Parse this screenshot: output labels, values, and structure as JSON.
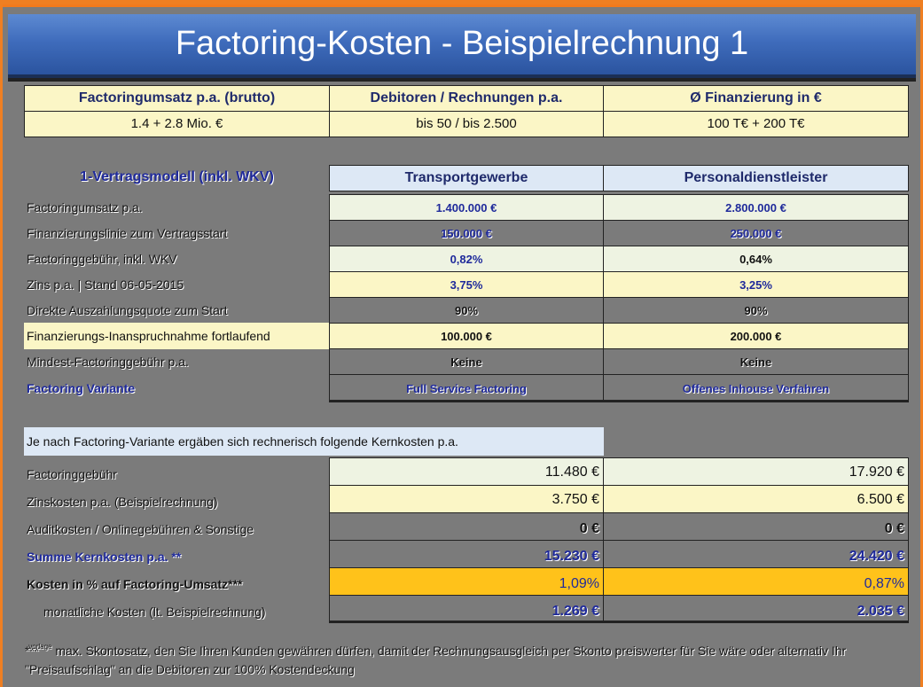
{
  "title": "Factoring-Kosten - Beispielrechnung 1",
  "top_table": {
    "headers": [
      "Factoringumsatz p.a. (brutto)",
      "Debitoren / Rechnungen p.a.",
      "Ø Finanzierung in €"
    ],
    "values": [
      "1.4 + 2.8 Mio. €",
      "bis 50 / bis 2.500",
      "100 T€ + 200 T€"
    ]
  },
  "model": {
    "header_label": "1-Vertragsmodell (inkl. WKV)",
    "col1": "Transportgewerbe",
    "col2": "Personaldienstleister",
    "rows": [
      {
        "label": "Factoringumsatz  p.a.",
        "v1": "1.400.000  €",
        "v2": "2.800.000  €"
      },
      {
        "label": "Finanzierungslinie  zum Vertragsstart",
        "v1": "150.000  €",
        "v2": "250.000  €"
      },
      {
        "label": "Factoringgebühr,  inkl.  WKV",
        "v1": "0,82%",
        "v2": "0,64%"
      },
      {
        "label": "Zins p.a.  | Stand 06-05-2015",
        "v1": "3,75%",
        "v2": "3,25%"
      },
      {
        "label": "Direkte  Auszahlungsquote  zum Start",
        "v1": "90%",
        "v2": "90%"
      },
      {
        "label": "Finanzierungs-Inanspruchnahme  fortlaufend",
        "v1": "100.000  €",
        "v2": "200.000  €"
      },
      {
        "label": "Mindest-Factoringgebühr  p.a.",
        "v1": "Keine",
        "v2": "Keine"
      },
      {
        "label": "Factoring  Variante",
        "v1": "Full  Service  Factoring",
        "v2": "Offenes  Inhouse  Verfahren"
      }
    ]
  },
  "core": {
    "intro": "Je nach Factoring-Variante  ergäben sich rechnerisch  folgende  Kernkosten  p.a.",
    "rows": [
      {
        "label": "Factoringgebühr",
        "v1": "11.480 €",
        "v2": "17.920 €"
      },
      {
        "label": "Zinskosten  p.a.  (Beispielrechnung)",
        "v1": "3.750 €",
        "v2": "6.500 €"
      },
      {
        "label": "Auditkosten  / Onlinegebühren  & Sonstige",
        "v1": "0 €",
        "v2": "0 €"
      },
      {
        "label": "Summe  Kernkosten  p.a. **",
        "v1": "15.230 €",
        "v2": "24.420 €"
      },
      {
        "label": "Kosten in % auf Factoring-Umsatz***",
        "v1": "1,09%",
        "v2": "0,87%"
      },
      {
        "label": "monatliche  Kosten  (lt.  Beispielrechnung)",
        "v1": "1.269 €",
        "v2": "2.035 €"
      }
    ]
  },
  "footnote": {
    "marker": "***",
    "small": "vorlage",
    "text": "max.  Skontosatz,  den Sie Ihren  Kunden  gewähren  dürfen,  damit der Rechnungsausgleich  per Skonto preiswerter  für Sie wäre oder  alternativ  Ihr \"Preisaufschlag\"  an die Debitoren zur 100% Kostendeckung"
  }
}
